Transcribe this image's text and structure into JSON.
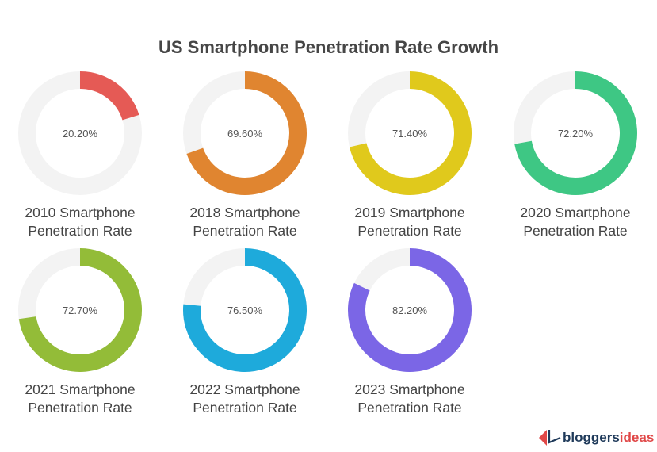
{
  "chart_data": {
    "type": "donut",
    "title": "US Smartphone Penetration Rate Growth",
    "track_color": "#f3f3f3",
    "charts": [
      {
        "label": "2010 Smartphone Penetration Rate",
        "value": 20.2,
        "value_label": "20.20%",
        "color": "#e55a55"
      },
      {
        "label": "2018 Smartphone Penetration Rate",
        "value": 69.6,
        "value_label": "69.60%",
        "color": "#e08530"
      },
      {
        "label": "2019 Smartphone Penetration Rate",
        "value": 71.4,
        "value_label": "71.40%",
        "color": "#e0c91c"
      },
      {
        "label": "2020 Smartphone Penetration Rate",
        "value": 72.2,
        "value_label": "72.20%",
        "color": "#3ec784"
      },
      {
        "label": "2021 Smartphone Penetration Rate",
        "value": 72.7,
        "value_label": "72.70%",
        "color": "#93bc38"
      },
      {
        "label": "2022 Smartphone Penetration Rate",
        "value": 76.5,
        "value_label": "76.50%",
        "color": "#1eaadb"
      },
      {
        "label": "2023 Smartphone Penetration Rate",
        "value": 82.2,
        "value_label": "82.20%",
        "color": "#7b66e6"
      }
    ]
  },
  "logo": {
    "part1": "bloggers",
    "part2": "ideas"
  }
}
